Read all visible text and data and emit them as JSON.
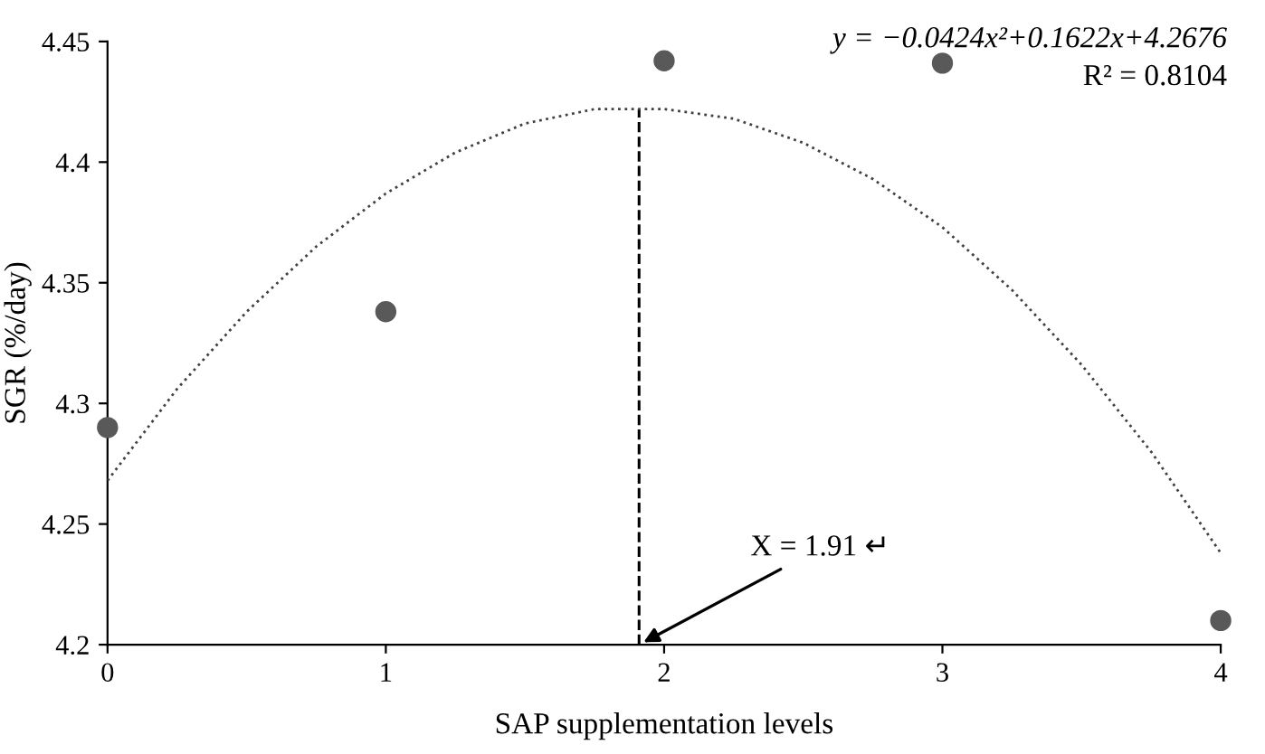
{
  "chart_data": {
    "type": "scatter",
    "xlabel": "SAP supplementation levels",
    "ylabel": "SGR (%/day)",
    "xlim": [
      0,
      4
    ],
    "ylim": [
      4.2,
      4.45
    ],
    "xticks": [
      0,
      1,
      2,
      3,
      4
    ],
    "yticks": [
      4.2,
      4.25,
      4.3,
      4.35,
      4.4,
      4.45
    ],
    "grid": false,
    "series": [
      {
        "marker": "circle",
        "color": "#595959",
        "x": [
          0,
          1,
          2,
          3,
          4
        ],
        "values": [
          4.29,
          4.338,
          4.442,
          4.441,
          4.21
        ]
      },
      {
        "type": "line",
        "color": "#404040",
        "line_style": "dotted",
        "marker": "none",
        "x": [
          0,
          0.25,
          0.5,
          0.75,
          1,
          1.25,
          1.5,
          1.75,
          2,
          2.25,
          2.5,
          2.75,
          3,
          3.25,
          3.5,
          3.75,
          4
        ],
        "values": [
          4.268,
          4.306,
          4.338,
          4.365,
          4.387,
          4.404,
          4.416,
          4.422,
          4.422,
          4.418,
          4.408,
          4.393,
          4.373,
          4.347,
          4.316,
          4.28,
          4.238
        ]
      }
    ],
    "ref_lines": [
      {
        "axis": "x",
        "value": 1.91,
        "line_style": "dashed",
        "color": "#000000"
      }
    ],
    "annotations": [
      "y = −0.0424x²+0.1622x+4.2676",
      "R² = 0.8104",
      {
        "text": "X = 1.91 ↵",
        "x": 1.91,
        "y": 4.2
      }
    ]
  }
}
